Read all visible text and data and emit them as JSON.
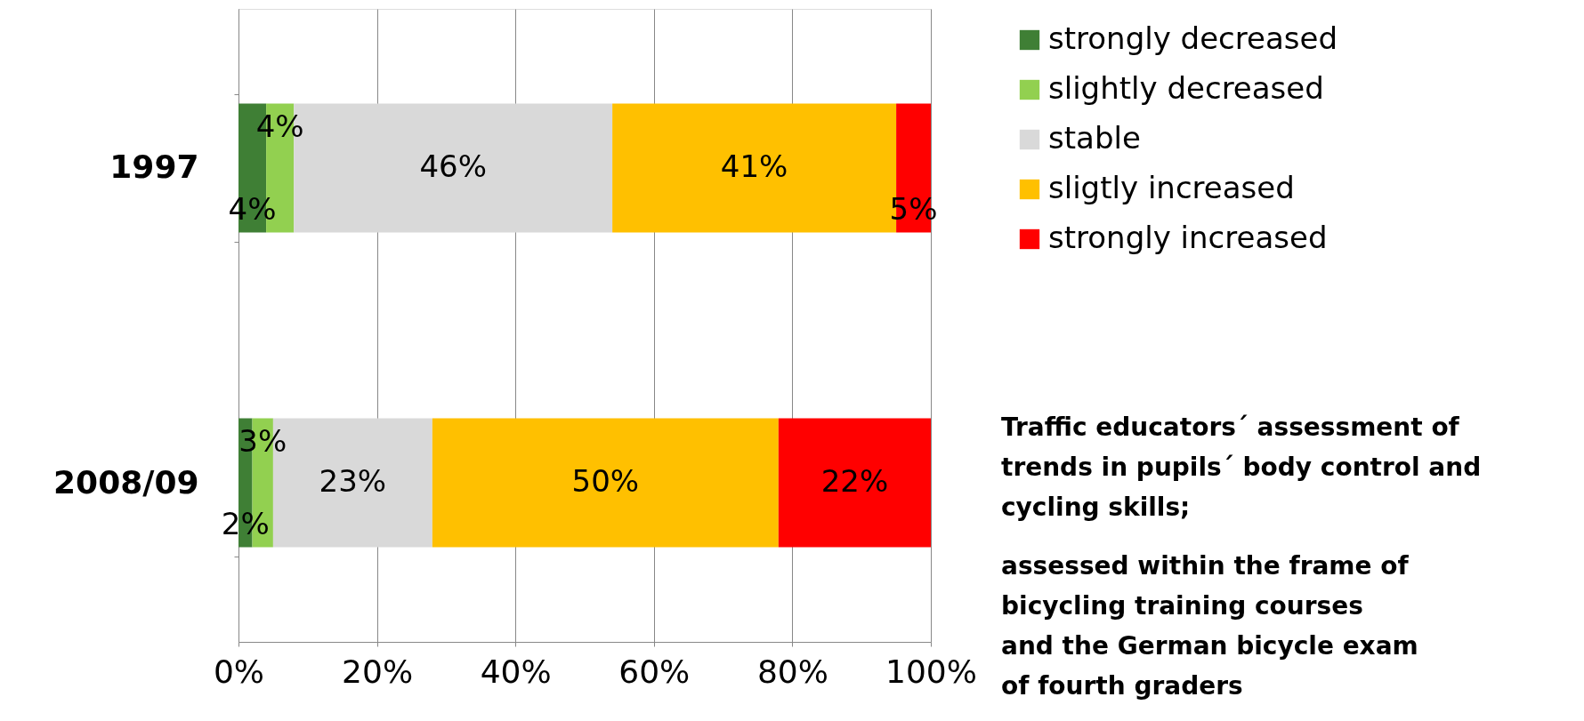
{
  "chart_data": {
    "type": "bar",
    "orientation": "horizontal",
    "stacked": true,
    "categories": [
      "1997",
      "2008/09"
    ],
    "series": [
      {
        "name": "strongly decreased",
        "color": "#3f7f35",
        "values": [
          4,
          2
        ],
        "value_labels": [
          "4%",
          "2%"
        ]
      },
      {
        "name": "slightly decreased",
        "color": "#92d050",
        "values": [
          4,
          3
        ],
        "value_labels": [
          "4%",
          "3%"
        ]
      },
      {
        "name": "stable",
        "color": "#d9d9d9",
        "values": [
          46,
          23
        ],
        "value_labels": [
          "46%",
          "23%"
        ]
      },
      {
        "name": "sligtly increased",
        "color": "#ffc000",
        "values": [
          41,
          50
        ],
        "value_labels": [
          "41%",
          "50%"
        ]
      },
      {
        "name": "strongly increased",
        "color": "#ff0000",
        "values": [
          5,
          22
        ],
        "value_labels": [
          "5%",
          "22%"
        ]
      }
    ],
    "xlim": [
      0,
      100
    ],
    "xticks": [
      {
        "value": 0,
        "label": "0%"
      },
      {
        "value": 20,
        "label": "20%"
      },
      {
        "value": 40,
        "label": "40%"
      },
      {
        "value": 60,
        "label": "60%"
      },
      {
        "value": 80,
        "label": "80%"
      },
      {
        "value": 100,
        "label": "100%"
      }
    ],
    "grid": "x",
    "legend": "right",
    "annotations": [
      "Traffic educators´ assessment of\ntrends in pupils´ body control and\ncycling skills;",
      "assessed within the frame of\nbicycling training courses\nand the German bicycle exam\nof fourth graders"
    ]
  }
}
